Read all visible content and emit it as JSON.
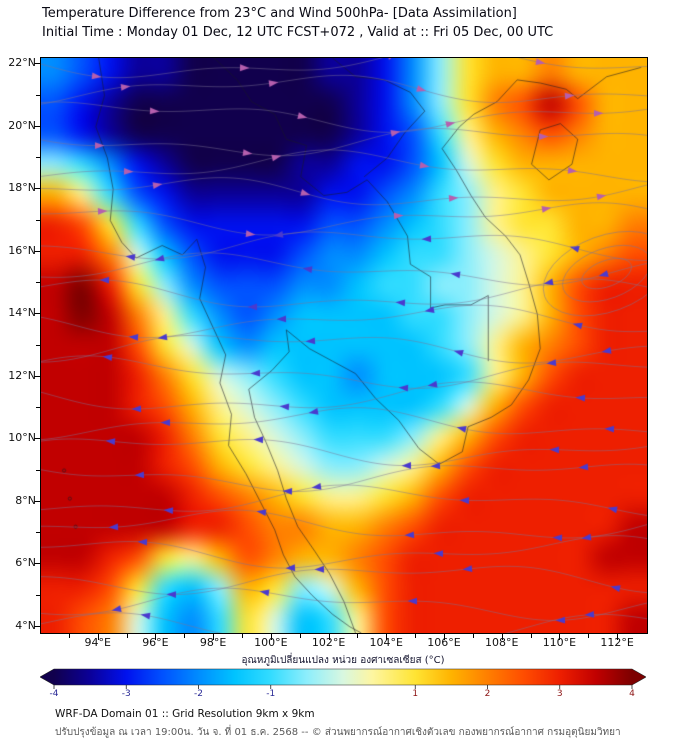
{
  "header": {
    "title": "Temperature Difference from 23°C and Wind 500hPa- [Data Assimilation]",
    "subtitle": "Initial Time : Monday 01 Dec, 12 UTC FCST+072 , Valid at ::  Fri 05 Dec, 00 UTC"
  },
  "map": {
    "lat_tick_labels": [
      "22°N",
      "20°N",
      "18°N",
      "16°N",
      "14°N",
      "12°N",
      "10°N",
      "8°N",
      "6°N",
      "4°N"
    ],
    "lon_tick_labels": [
      "94°E",
      "96°E",
      "98°E",
      "100°E",
      "102°E",
      "104°E",
      "106°E",
      "108°E",
      "110°E",
      "112°E"
    ]
  },
  "colorbar": {
    "title": "อุณหภูมิเปลี่ยนแปลง หน่วย องศาเซลเซียส (°C)",
    "tick_values": [
      -4,
      -3,
      -2,
      -1,
      1,
      2,
      3,
      4
    ],
    "range": [
      -4,
      4
    ]
  },
  "footer": {
    "line1": "WRF-DA Domain 01 :: Grid Resolution 9km x 9km",
    "line2": "ปรับปรุงข้อมูล ณ เวลา 19:00น. วัน จ. ที่ 01 ธ.ค. 2568 -- © ส่วนพยากรณ์อากาศเชิงตัวเลข กองพยากรณ์อากาศ กรมอุตุนิยมวิทยา"
  },
  "chart_data": {
    "type": "heatmap",
    "title": "Temperature Difference from 23°C and Wind 500hPa [Data Assimilation]",
    "field": "temperature difference from 23°C",
    "units": "°C",
    "overlay": "500hPa wind streamlines; pink-purple arrows (eastward flow) north of ~16°N, indigo arrows (westward easterly flow) to the south; cyclonic circulation near 15.3°N 111.6°E",
    "xlabel": "longitude (°E)",
    "ylabel": "latitude (°N)",
    "lon": {
      "min": 92,
      "max": 113,
      "step": 1
    },
    "lat": {
      "min": 4,
      "max": 22,
      "step": 1,
      "order": "north_to_south"
    },
    "xlim": [
      92,
      113
    ],
    "ylim": [
      3.8,
      22.2
    ],
    "values": [
      [
        -2,
        -2.5,
        -3,
        -3.5,
        -3.5,
        -4,
        -4,
        -4,
        -4,
        -4,
        -3.5,
        -3.5,
        -3,
        -2,
        -0.5,
        1,
        1.5,
        1.5,
        2,
        1.5,
        1.5,
        1.5
      ],
      [
        -2.5,
        -3,
        -3.5,
        -4,
        -4,
        -4,
        -4,
        -4,
        -4,
        -4,
        -4,
        -3.5,
        -3,
        -2,
        -0.5,
        1,
        2,
        2.5,
        3.5,
        2.5,
        1.5,
        1.5
      ],
      [
        -2.5,
        -3,
        -3.5,
        -4,
        -4,
        -4,
        -4,
        -4,
        -4,
        -4,
        -4,
        -3.5,
        -3,
        -2.5,
        -1,
        0.5,
        1.5,
        2,
        2.5,
        2,
        1.5,
        1.5
      ],
      [
        -0.5,
        -1,
        -2,
        -3,
        -3.5,
        -4,
        -4,
        -4,
        -4,
        -3.5,
        -3.5,
        -3,
        -3,
        -2.5,
        -1.5,
        0,
        1,
        1.5,
        1.5,
        1.5,
        1.5,
        1.5
      ],
      [
        1.5,
        0.5,
        -1,
        -2.5,
        -3,
        -3.5,
        -3.5,
        -3.5,
        -3.5,
        -3.5,
        -3,
        -3,
        -2.5,
        -2,
        -1,
        -0.5,
        0.5,
        1,
        1.5,
        1.5,
        1.5,
        1.5
      ],
      [
        3,
        2.5,
        1,
        -1,
        -2.5,
        -3,
        -3,
        -3,
        -3,
        -3,
        -2.5,
        -2.5,
        -2,
        -1.5,
        -1,
        -0.5,
        0.5,
        1,
        1,
        1.5,
        1.5,
        2
      ],
      [
        3,
        3,
        2,
        0,
        -1.5,
        -2.5,
        -3,
        -3,
        -3,
        -2.5,
        -2,
        -2,
        -1.5,
        -1,
        -1,
        -0.5,
        0,
        0.5,
        1,
        1.5,
        2,
        2.5
      ],
      [
        3.5,
        4,
        3,
        1,
        -0.5,
        -2,
        -2.5,
        -2.5,
        -2.5,
        -2,
        -2,
        -1.5,
        -1,
        -1,
        -0.5,
        -0.5,
        0,
        0.5,
        1.5,
        2.5,
        3,
        3
      ],
      [
        3.5,
        4,
        3.5,
        2,
        0.5,
        -1,
        -2,
        -2.5,
        -2,
        -1.5,
        -1.5,
        -1.5,
        -1.5,
        -1,
        -1,
        -0.5,
        0,
        0.5,
        1.5,
        2.5,
        3,
        3
      ],
      [
        3.5,
        3.5,
        3.5,
        2.5,
        1,
        0,
        -1.5,
        -2,
        -1.5,
        -1.5,
        -1.5,
        -1.5,
        -1.5,
        -1.5,
        -1,
        -0.5,
        0.5,
        1.5,
        2,
        2.5,
        3,
        3
      ],
      [
        3.5,
        3.5,
        3.5,
        3,
        2,
        1,
        0,
        -0.5,
        -1,
        -1.5,
        -1.5,
        -2,
        -1.5,
        -1.5,
        -1.5,
        -1,
        0.5,
        1.5,
        2.5,
        3,
        3,
        3
      ],
      [
        3.5,
        3.5,
        3.5,
        3,
        2.5,
        1.5,
        0.5,
        0,
        -0.5,
        -1,
        -1.5,
        -1.5,
        -1.5,
        -1.5,
        -1,
        0,
        1.5,
        2.5,
        3,
        3,
        3,
        3
      ],
      [
        3.5,
        3.5,
        3.5,
        3.5,
        3,
        2,
        1,
        0.5,
        0,
        -0.5,
        -1,
        -1,
        -1,
        -0.5,
        0.5,
        1.5,
        2.5,
        3,
        3,
        3,
        3,
        3
      ],
      [
        3.5,
        3.5,
        3.5,
        3.5,
        3,
        2.5,
        1.5,
        1,
        0.5,
        0,
        -0.5,
        -0.5,
        0,
        0.5,
        1.5,
        2.5,
        3,
        3,
        3,
        3,
        3,
        3
      ],
      [
        3.5,
        3.5,
        3.5,
        3.5,
        3.5,
        3,
        2.5,
        2,
        1.5,
        1,
        0.5,
        0.5,
        1,
        1.5,
        2.5,
        3,
        3,
        3,
        3,
        3,
        3,
        3
      ],
      [
        3.5,
        3.5,
        3.5,
        3.5,
        3.5,
        3,
        3,
        2.5,
        2,
        2,
        1.5,
        1.5,
        2,
        2.5,
        3,
        3,
        3,
        3,
        3,
        3,
        3,
        3.5
      ],
      [
        3.5,
        3.5,
        3,
        2.5,
        1,
        0.5,
        1.5,
        2.5,
        2,
        1.5,
        1.5,
        2,
        2.5,
        3,
        3,
        3,
        3,
        3,
        3,
        3,
        3.5,
        3.5
      ],
      [
        3,
        3,
        2.5,
        1,
        -1,
        -1.5,
        -0.5,
        1.5,
        1,
        -0.5,
        0,
        1.5,
        2.5,
        3,
        3,
        3,
        3,
        3,
        3,
        3,
        3,
        3
      ],
      [
        3,
        2.5,
        2,
        0,
        -1.5,
        -2,
        -1,
        1,
        0,
        -1.5,
        -1,
        0.5,
        2.5,
        3,
        3,
        3,
        3,
        3,
        3,
        3,
        3,
        3.5
      ]
    ],
    "colormap": [
      {
        "v": -4,
        "c": "#11004d"
      },
      {
        "v": -3.5,
        "c": "#0b0099"
      },
      {
        "v": -3,
        "c": "#0011ee"
      },
      {
        "v": -2.5,
        "c": "#0051ff"
      },
      {
        "v": -2,
        "c": "#008cff"
      },
      {
        "v": -1.5,
        "c": "#00c3ff"
      },
      {
        "v": -1,
        "c": "#33dcff"
      },
      {
        "v": -0.5,
        "c": "#8deefc"
      },
      {
        "v": 0,
        "c": "#d8f7e0"
      },
      {
        "v": 0.4,
        "c": "#fdf6a2"
      },
      {
        "v": 1,
        "c": "#ffe433"
      },
      {
        "v": 1.5,
        "c": "#ffb300"
      },
      {
        "v": 2,
        "c": "#ff7f00"
      },
      {
        "v": 2.5,
        "c": "#ff4d00"
      },
      {
        "v": 3,
        "c": "#ee1f00"
      },
      {
        "v": 3.5,
        "c": "#c10000"
      },
      {
        "v": 4,
        "c": "#7d0000"
      }
    ],
    "wind_arrow_colors": {
      "north": "#b55fae",
      "south": "#4a3ace"
    },
    "grid": false,
    "legend_position": "bottom colorbar"
  }
}
